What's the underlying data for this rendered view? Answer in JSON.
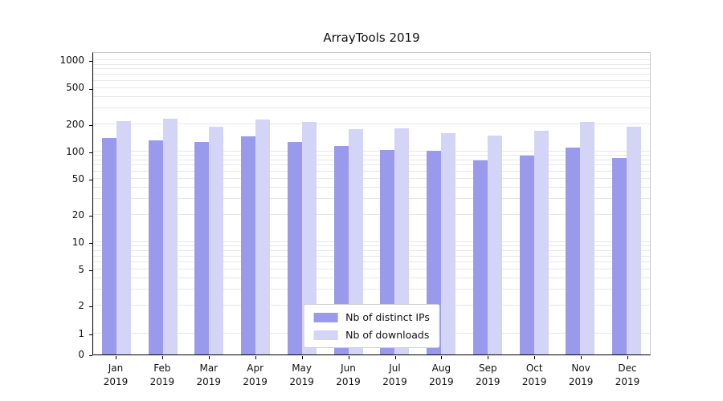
{
  "title": "ArrayTools 2019",
  "chart_data": {
    "type": "bar",
    "title": "ArrayTools 2019",
    "xlabel": "",
    "ylabel": "",
    "yscale": "symlog",
    "ylim": [
      0,
      1000
    ],
    "y_ticks": [
      1000,
      500,
      200,
      100,
      50,
      20,
      10,
      5,
      2,
      1,
      0
    ],
    "grid": "horizontal-minor",
    "legend_position": "bottom-center",
    "year_label": "2019",
    "categories": [
      "Jan",
      "Feb",
      "Mar",
      "Apr",
      "May",
      "Jun",
      "Jul",
      "Aug",
      "Sep",
      "Oct",
      "Nov",
      "Dec"
    ],
    "series": [
      {
        "key": "distinct-ips",
        "name": "Nb of distinct IPs",
        "color": "#9a9aec",
        "values": [
          140,
          133,
          128,
          145,
          127,
          115,
          103,
          101,
          80,
          90,
          110,
          85
        ]
      },
      {
        "key": "downloads",
        "name": "Nb of downloads",
        "color": "#d4d4f7",
        "values": [
          215,
          230,
          185,
          225,
          210,
          175,
          180,
          158,
          148,
          170,
          210,
          188
        ]
      }
    ]
  }
}
